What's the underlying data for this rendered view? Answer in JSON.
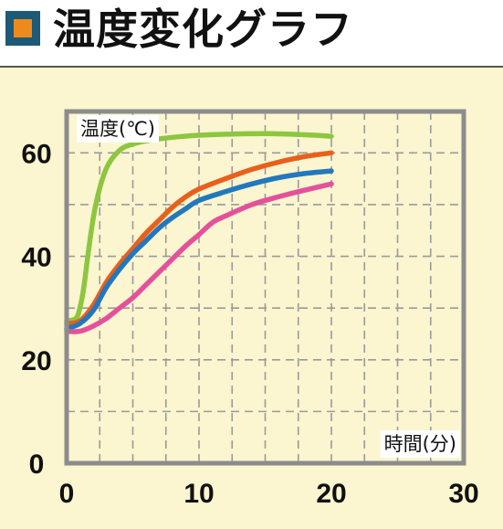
{
  "header": {
    "title": "温度変化グラフ",
    "badge_color": "#1d5a78",
    "badge_inner_color": "#ee8a1c"
  },
  "chart_data": {
    "type": "line",
    "title": "温度変化グラフ",
    "xlabel": "時間(分)",
    "ylabel": "温度(℃)",
    "xlim": [
      0,
      30
    ],
    "ylim": [
      0,
      68
    ],
    "xticks": [
      0,
      10,
      20,
      30
    ],
    "yticks": [
      0,
      20,
      40,
      60
    ],
    "grid": true,
    "background": "#fbf5d0",
    "series": [
      {
        "color": "#8dc63f",
        "points": [
          [
            0,
            27.5
          ],
          [
            0.7,
            28
          ],
          [
            1,
            30
          ],
          [
            1.3,
            34
          ],
          [
            1.7,
            42
          ],
          [
            2.2,
            50
          ],
          [
            3,
            57
          ],
          [
            4,
            60.5
          ],
          [
            5,
            61.7
          ],
          [
            6,
            62.3
          ],
          [
            8,
            63
          ],
          [
            10,
            63.4
          ],
          [
            12,
            63.6
          ],
          [
            15,
            63.7
          ],
          [
            18,
            63.5
          ],
          [
            20,
            63.2
          ]
        ]
      },
      {
        "color": "#e8601c",
        "points": [
          [
            0,
            27
          ],
          [
            1,
            27.5
          ],
          [
            2,
            30.5
          ],
          [
            3,
            35
          ],
          [
            4,
            38.5
          ],
          [
            5,
            41.5
          ],
          [
            6,
            44.5
          ],
          [
            7,
            47
          ],
          [
            8,
            49.5
          ],
          [
            9,
            51.5
          ],
          [
            10,
            53
          ],
          [
            12,
            55
          ],
          [
            14,
            56.8
          ],
          [
            16,
            58.2
          ],
          [
            18,
            59.3
          ],
          [
            20,
            60
          ]
        ]
      },
      {
        "color": "#2278bd",
        "points": [
          [
            0,
            26
          ],
          [
            1,
            27
          ],
          [
            2,
            29.5
          ],
          [
            3,
            34
          ],
          [
            4,
            37.5
          ],
          [
            5,
            40.5
          ],
          [
            6,
            43
          ],
          [
            7,
            45.5
          ],
          [
            8,
            47.5
          ],
          [
            9,
            49.2
          ],
          [
            10,
            50.8
          ],
          [
            12,
            52.5
          ],
          [
            14,
            54
          ],
          [
            16,
            55.2
          ],
          [
            18,
            56
          ],
          [
            20,
            56.5
          ]
        ]
      },
      {
        "color": "#e4519b",
        "points": [
          [
            0,
            25.5
          ],
          [
            1,
            25.5
          ],
          [
            2,
            26.5
          ],
          [
            3,
            28
          ],
          [
            4,
            30
          ],
          [
            5,
            32
          ],
          [
            6,
            34.5
          ],
          [
            7,
            37
          ],
          [
            8,
            39.5
          ],
          [
            9,
            42
          ],
          [
            10,
            44.2
          ],
          [
            11,
            46.5
          ],
          [
            12,
            47.8
          ],
          [
            14,
            50
          ],
          [
            16,
            51.5
          ],
          [
            18,
            52.8
          ],
          [
            20,
            54
          ]
        ]
      }
    ]
  }
}
